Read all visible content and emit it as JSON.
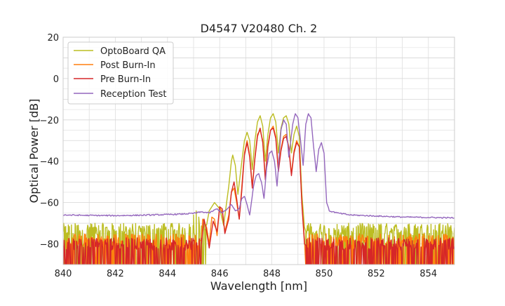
{
  "chart_data": {
    "type": "line",
    "title": "D4547 V20480 Ch. 2",
    "xlabel": "Wavelength [nm]",
    "ylabel": "Optical Power [dB]",
    "xlim": [
      840,
      855
    ],
    "ylim": [
      -90,
      20
    ],
    "xticks": [
      840,
      842,
      844,
      846,
      848,
      850,
      852,
      854
    ],
    "yticks": [
      -80,
      -60,
      -40,
      -20,
      0,
      20
    ],
    "xtick_labels": [
      "840",
      "842",
      "844",
      "846",
      "848",
      "850",
      "852",
      "854"
    ],
    "ytick_labels": [
      "−80",
      "−60",
      "−40",
      "−20",
      "0",
      "20"
    ],
    "grid": true,
    "legend_position": "top-left",
    "series": [
      {
        "name": "OptoBoard QA",
        "color": "#bcbd22",
        "noise_floor": -73,
        "noise_range": [
          840.0,
          845.5,
          849.3,
          855.0
        ],
        "points": [
          [
            845.0,
            -66
          ],
          [
            845.1,
            -64
          ],
          [
            845.2,
            -67
          ],
          [
            845.4,
            -69
          ],
          [
            845.6,
            -64
          ],
          [
            845.8,
            -60
          ],
          [
            846.0,
            -63
          ],
          [
            846.15,
            -71
          ],
          [
            846.35,
            -52
          ],
          [
            846.45,
            -40
          ],
          [
            846.5,
            -37
          ],
          [
            846.6,
            -42
          ],
          [
            846.7,
            -56
          ],
          [
            846.85,
            -40
          ],
          [
            846.95,
            -30
          ],
          [
            847.05,
            -26
          ],
          [
            847.15,
            -30
          ],
          [
            847.25,
            -44
          ],
          [
            847.35,
            -30
          ],
          [
            847.45,
            -21
          ],
          [
            847.55,
            -18
          ],
          [
            847.65,
            -23
          ],
          [
            847.75,
            -40
          ],
          [
            847.85,
            -27
          ],
          [
            847.95,
            -19
          ],
          [
            848.05,
            -17
          ],
          [
            848.15,
            -21
          ],
          [
            848.25,
            -36
          ],
          [
            848.35,
            -24
          ],
          [
            848.45,
            -19
          ],
          [
            848.55,
            -18
          ],
          [
            848.65,
            -22
          ],
          [
            848.75,
            -36
          ],
          [
            848.85,
            -27
          ],
          [
            848.95,
            -23
          ],
          [
            849.05,
            -28
          ],
          [
            849.15,
            -56
          ],
          [
            849.25,
            -72
          ],
          [
            849.3,
            -74
          ]
        ]
      },
      {
        "name": "Post Burn-In",
        "color": "#ff7f0e",
        "noise_floor": -78,
        "noise_range": [
          840.0,
          845.2,
          849.3,
          855.0
        ],
        "points": [
          [
            845.3,
            -78
          ],
          [
            845.35,
            -68
          ],
          [
            845.5,
            -72
          ],
          [
            845.6,
            -80
          ],
          [
            845.7,
            -67
          ],
          [
            845.8,
            -68
          ],
          [
            845.9,
            -76
          ],
          [
            846.0,
            -62
          ],
          [
            846.1,
            -65
          ],
          [
            846.2,
            -74
          ],
          [
            846.35,
            -66
          ],
          [
            846.45,
            -55
          ],
          [
            846.55,
            -53
          ],
          [
            846.65,
            -60
          ],
          [
            846.75,
            -68
          ],
          [
            846.85,
            -52
          ],
          [
            846.95,
            -36
          ],
          [
            847.05,
            -30
          ],
          [
            847.15,
            -37
          ],
          [
            847.25,
            -52
          ],
          [
            847.35,
            -38
          ],
          [
            847.45,
            -27
          ],
          [
            847.55,
            -25
          ],
          [
            847.65,
            -30
          ],
          [
            847.75,
            -48
          ],
          [
            847.85,
            -32
          ],
          [
            847.95,
            -25
          ],
          [
            848.05,
            -23
          ],
          [
            848.15,
            -28
          ],
          [
            848.25,
            -44
          ],
          [
            848.35,
            -34
          ],
          [
            848.45,
            -28
          ],
          [
            848.55,
            -27
          ],
          [
            848.65,
            -33
          ],
          [
            848.75,
            -46
          ],
          [
            848.85,
            -35
          ],
          [
            848.95,
            -30
          ],
          [
            849.05,
            -33
          ],
          [
            849.15,
            -60
          ],
          [
            849.25,
            -78
          ]
        ]
      },
      {
        "name": "Pre Burn-In",
        "color": "#d62728",
        "noise_floor": -80,
        "noise_range": [
          840.0,
          845.3,
          849.3,
          855.0
        ],
        "points": [
          [
            845.3,
            -80
          ],
          [
            845.4,
            -68
          ],
          [
            845.5,
            -74
          ],
          [
            845.6,
            -82
          ],
          [
            845.75,
            -69
          ],
          [
            845.9,
            -74
          ],
          [
            846.0,
            -62
          ],
          [
            846.1,
            -63
          ],
          [
            846.2,
            -75
          ],
          [
            846.35,
            -68
          ],
          [
            846.45,
            -55
          ],
          [
            846.55,
            -50
          ],
          [
            846.65,
            -58
          ],
          [
            846.75,
            -68
          ],
          [
            846.85,
            -54
          ],
          [
            846.95,
            -37
          ],
          [
            847.05,
            -31
          ],
          [
            847.15,
            -38
          ],
          [
            847.25,
            -53
          ],
          [
            847.35,
            -39
          ],
          [
            847.45,
            -28
          ],
          [
            847.55,
            -24
          ],
          [
            847.65,
            -31
          ],
          [
            847.75,
            -49
          ],
          [
            847.85,
            -33
          ],
          [
            847.95,
            -25
          ],
          [
            848.05,
            -24
          ],
          [
            848.15,
            -29
          ],
          [
            848.25,
            -45
          ],
          [
            848.35,
            -35
          ],
          [
            848.45,
            -29
          ],
          [
            848.55,
            -28
          ],
          [
            848.65,
            -34
          ],
          [
            848.75,
            -47
          ],
          [
            848.85,
            -36
          ],
          [
            848.95,
            -31
          ],
          [
            849.05,
            -33
          ],
          [
            849.15,
            -61
          ],
          [
            849.25,
            -80
          ]
        ]
      },
      {
        "name": "Reception Test",
        "color": "#9467bd",
        "noise_floor": null,
        "noise_range": [],
        "points": [
          [
            840.0,
            -66
          ],
          [
            841.0,
            -66.2
          ],
          [
            842.0,
            -66.3
          ],
          [
            843.0,
            -66.1
          ],
          [
            844.0,
            -65.8
          ],
          [
            844.5,
            -65.6
          ],
          [
            845.0,
            -65.2
          ],
          [
            845.3,
            -64.5
          ],
          [
            845.6,
            -65
          ],
          [
            845.9,
            -63
          ],
          [
            846.1,
            -65
          ],
          [
            846.3,
            -63
          ],
          [
            846.45,
            -61
          ],
          [
            846.6,
            -64
          ],
          [
            846.75,
            -63
          ],
          [
            846.85,
            -58
          ],
          [
            846.95,
            -57
          ],
          [
            847.05,
            -61
          ],
          [
            847.15,
            -66
          ],
          [
            847.3,
            -52
          ],
          [
            847.4,
            -47
          ],
          [
            847.5,
            -46
          ],
          [
            847.6,
            -50
          ],
          [
            847.7,
            -58
          ],
          [
            847.8,
            -43
          ],
          [
            847.9,
            -36
          ],
          [
            848.0,
            -35
          ],
          [
            848.1,
            -40
          ],
          [
            848.2,
            -52
          ],
          [
            848.35,
            -25
          ],
          [
            848.45,
            -20
          ],
          [
            848.55,
            -22
          ],
          [
            848.65,
            -38
          ],
          [
            848.8,
            -22
          ],
          [
            848.9,
            -17
          ],
          [
            849.0,
            -19
          ],
          [
            849.1,
            -30
          ],
          [
            849.2,
            -42
          ],
          [
            849.3,
            -22
          ],
          [
            849.4,
            -17
          ],
          [
            849.5,
            -19
          ],
          [
            849.6,
            -33
          ],
          [
            849.7,
            -45
          ],
          [
            849.8,
            -34
          ],
          [
            849.9,
            -31
          ],
          [
            850.0,
            -36
          ],
          [
            850.1,
            -60
          ],
          [
            850.2,
            -64
          ],
          [
            850.5,
            -65
          ],
          [
            851.0,
            -66
          ],
          [
            852.0,
            -66.5
          ],
          [
            853.0,
            -67
          ],
          [
            854.0,
            -67.2
          ],
          [
            855.0,
            -67.4
          ]
        ]
      }
    ]
  }
}
